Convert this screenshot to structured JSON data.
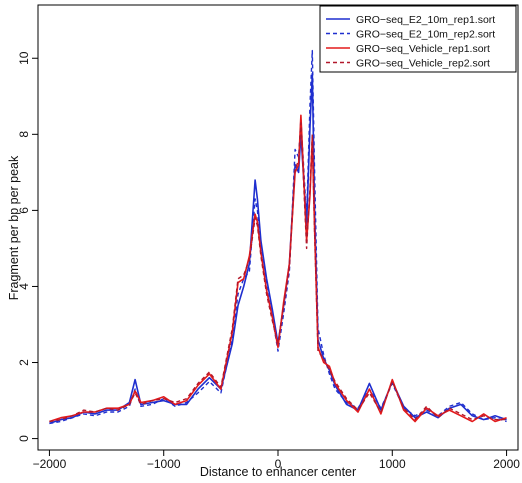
{
  "chart_data": {
    "type": "line",
    "title": "",
    "xlabel": "Distance to enhancer center",
    "ylabel": "Fragment per bp per peak",
    "xlim": [
      -2100,
      2100
    ],
    "ylim": [
      -0.3,
      11.4
    ],
    "xticks": [
      -2000,
      -1000,
      0,
      1000,
      2000
    ],
    "yticks": [
      0,
      2,
      4,
      6,
      8,
      10
    ],
    "xtick_labels": [
      "−2000",
      "−1000",
      "0",
      "1000",
      "2000"
    ],
    "ytick_labels": [
      "0",
      "2",
      "4",
      "6",
      "8",
      "10"
    ],
    "grid": false,
    "legend_position": "top-right",
    "series": [
      {
        "name": "GRO−seq_E2_10m_rep1.sort",
        "color": "#1f2fcf",
        "dash": "solid",
        "x": [
          -2000,
          -1900,
          -1800,
          -1700,
          -1600,
          -1500,
          -1400,
          -1300,
          -1250,
          -1200,
          -1100,
          -1000,
          -900,
          -800,
          -700,
          -600,
          -500,
          -400,
          -350,
          -300,
          -250,
          -200,
          -180,
          -150,
          -100,
          -50,
          0,
          50,
          100,
          150,
          180,
          200,
          250,
          280,
          300,
          320,
          350,
          400,
          450,
          500,
          600,
          700,
          800,
          900,
          1000,
          1100,
          1200,
          1300,
          1400,
          1500,
          1600,
          1700,
          1800,
          1900,
          2000
        ],
        "y": [
          0.4,
          0.5,
          0.55,
          0.7,
          0.65,
          0.75,
          0.75,
          0.95,
          1.55,
          0.9,
          0.95,
          1.0,
          0.9,
          0.9,
          1.3,
          1.6,
          1.3,
          2.5,
          3.5,
          4.0,
          4.6,
          6.8,
          6.3,
          5.2,
          4.2,
          3.4,
          2.5,
          3.5,
          4.6,
          7.2,
          7.0,
          8.0,
          5.6,
          8.2,
          9.6,
          6.0,
          2.6,
          2.1,
          1.8,
          1.4,
          0.9,
          0.75,
          1.45,
          0.75,
          1.5,
          0.85,
          0.55,
          0.7,
          0.55,
          0.8,
          0.9,
          0.6,
          0.5,
          0.6,
          0.5
        ]
      },
      {
        "name": "GRO−seq_E2_10m_rep2.sort",
        "color": "#1f2fcf",
        "dash": "dashed",
        "x": [
          -2000,
          -1900,
          -1800,
          -1700,
          -1600,
          -1500,
          -1400,
          -1300,
          -1250,
          -1200,
          -1100,
          -1000,
          -900,
          -800,
          -700,
          -600,
          -500,
          -400,
          -350,
          -300,
          -250,
          -200,
          -180,
          -150,
          -100,
          -50,
          0,
          50,
          100,
          150,
          180,
          200,
          250,
          280,
          300,
          320,
          350,
          400,
          450,
          500,
          600,
          700,
          800,
          900,
          1000,
          1100,
          1200,
          1300,
          1400,
          1500,
          1600,
          1700,
          1800,
          1900,
          2000
        ],
        "y": [
          0.4,
          0.45,
          0.55,
          0.65,
          0.6,
          0.7,
          0.7,
          0.85,
          1.3,
          0.85,
          0.9,
          1.05,
          0.85,
          0.95,
          1.2,
          1.5,
          1.2,
          2.6,
          3.8,
          4.2,
          4.4,
          6.3,
          6.0,
          5.0,
          4.0,
          3.2,
          2.3,
          3.3,
          4.4,
          7.6,
          7.4,
          8.4,
          5.8,
          8.8,
          10.2,
          7.0,
          2.9,
          2.2,
          1.7,
          1.3,
          0.95,
          0.8,
          1.3,
          0.8,
          1.45,
          0.8,
          0.6,
          0.75,
          0.6,
          0.85,
          0.95,
          0.65,
          0.5,
          0.55,
          0.45
        ]
      },
      {
        "name": "GRO−seq_Vehicle_rep1.sort",
        "color": "#e31a1c",
        "dash": "solid",
        "x": [
          -2000,
          -1900,
          -1800,
          -1700,
          -1600,
          -1500,
          -1400,
          -1300,
          -1250,
          -1200,
          -1100,
          -1000,
          -900,
          -800,
          -700,
          -600,
          -500,
          -400,
          -350,
          -300,
          -250,
          -200,
          -180,
          -150,
          -100,
          -50,
          0,
          50,
          100,
          150,
          180,
          200,
          250,
          280,
          300,
          320,
          350,
          400,
          450,
          500,
          600,
          700,
          800,
          900,
          1000,
          1100,
          1200,
          1300,
          1400,
          1500,
          1600,
          1700,
          1800,
          1900,
          2000
        ],
        "y": [
          0.45,
          0.55,
          0.6,
          0.7,
          0.7,
          0.8,
          0.8,
          0.9,
          1.25,
          0.95,
          1.0,
          1.1,
          0.9,
          1.0,
          1.4,
          1.7,
          1.3,
          2.8,
          4.1,
          4.2,
          4.8,
          5.9,
          5.7,
          4.9,
          3.9,
          3.2,
          2.4,
          3.6,
          4.6,
          7.0,
          7.2,
          8.5,
          5.2,
          6.4,
          7.9,
          5.5,
          2.4,
          2.0,
          1.9,
          1.45,
          1.0,
          0.7,
          1.3,
          0.65,
          1.55,
          0.75,
          0.45,
          0.8,
          0.6,
          0.75,
          0.6,
          0.45,
          0.65,
          0.45,
          0.55
        ]
      },
      {
        "name": "GRO−seq_Vehicle_rep2.sort",
        "color": "#b2182b",
        "dash": "dashed",
        "x": [
          -2000,
          -1900,
          -1800,
          -1700,
          -1600,
          -1500,
          -1400,
          -1300,
          -1250,
          -1200,
          -1100,
          -1000,
          -900,
          -800,
          -700,
          -600,
          -500,
          -400,
          -350,
          -300,
          -250,
          -200,
          -180,
          -150,
          -100,
          -50,
          0,
          50,
          100,
          150,
          180,
          200,
          250,
          280,
          300,
          320,
          350,
          400,
          450,
          500,
          600,
          700,
          800,
          900,
          1000,
          1100,
          1200,
          1300,
          1400,
          1500,
          1600,
          1700,
          1800,
          1900,
          2000
        ],
        "y": [
          0.45,
          0.5,
          0.6,
          0.75,
          0.7,
          0.8,
          0.75,
          0.9,
          1.2,
          0.9,
          1.0,
          1.05,
          0.95,
          1.05,
          1.45,
          1.75,
          1.35,
          2.9,
          4.2,
          4.3,
          4.7,
          5.8,
          5.6,
          4.8,
          3.8,
          3.1,
          2.5,
          3.5,
          4.5,
          7.1,
          7.3,
          8.3,
          5.0,
          6.6,
          8.0,
          5.4,
          2.3,
          2.1,
          1.8,
          1.5,
          1.05,
          0.75,
          1.2,
          0.7,
          1.5,
          0.8,
          0.5,
          0.85,
          0.55,
          0.8,
          0.65,
          0.5,
          0.6,
          0.5,
          0.5
        ]
      }
    ]
  }
}
